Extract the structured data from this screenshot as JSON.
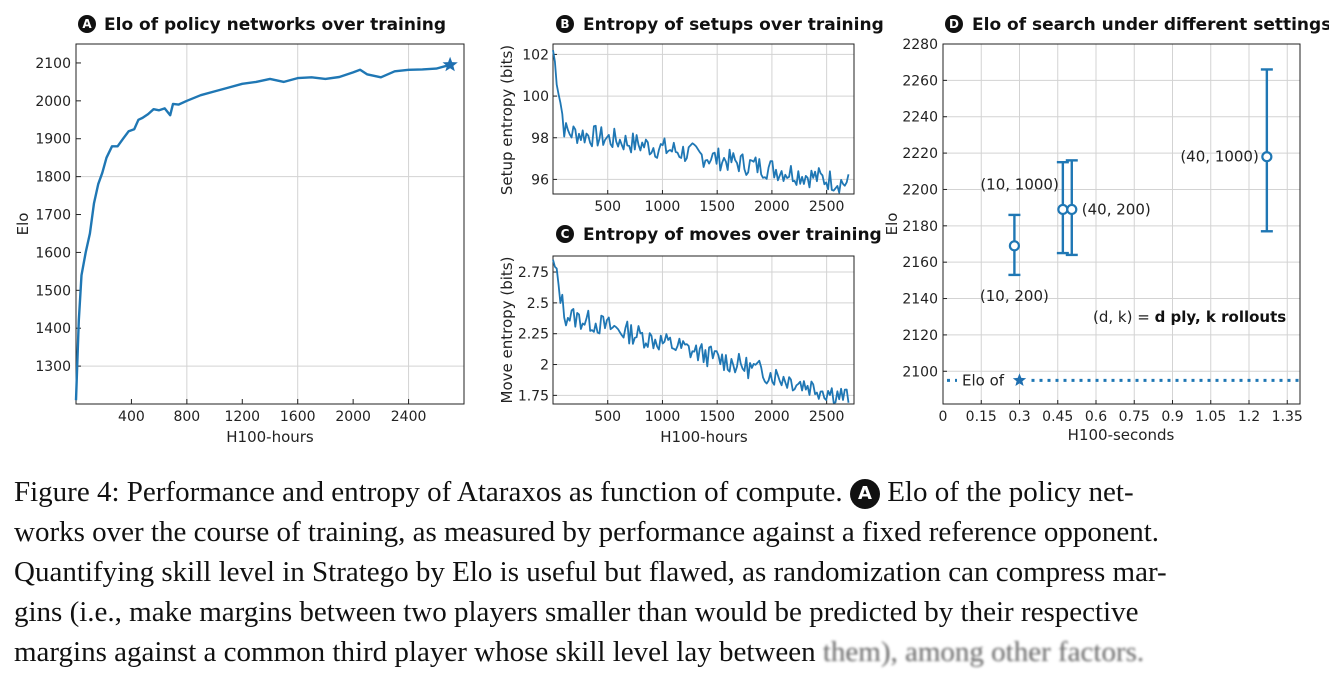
{
  "colors": {
    "line": "#1f77b4",
    "marker": "#1f6fb0",
    "text": "#111111"
  },
  "chart_data": [
    {
      "id": "A",
      "type": "line",
      "title": "Elo of policy networks over training",
      "xlabel": "H100-hours",
      "ylabel": "Elo",
      "xlim": [
        0,
        2800
      ],
      "ylim": [
        1200,
        2150
      ],
      "xticks": [
        400,
        800,
        1200,
        1600,
        2000,
        2400
      ],
      "yticks": [
        1300,
        1400,
        1500,
        1600,
        1700,
        1800,
        1900,
        2000,
        2100
      ],
      "gridlines_x": [
        800,
        1600,
        2400
      ],
      "gridlines_y": [
        1300,
        1800
      ],
      "x": [
        0,
        20,
        40,
        70,
        100,
        130,
        160,
        190,
        220,
        260,
        300,
        340,
        380,
        420,
        450,
        480,
        520,
        560,
        600,
        640,
        680,
        700,
        740,
        800,
        900,
        1000,
        1100,
        1200,
        1300,
        1400,
        1500,
        1600,
        1700,
        1800,
        1900,
        2000,
        2050,
        2100,
        2200,
        2300,
        2400,
        2500,
        2600,
        2700
      ],
      "y": [
        1210,
        1420,
        1540,
        1600,
        1650,
        1730,
        1780,
        1810,
        1850,
        1880,
        1880,
        1900,
        1920,
        1925,
        1950,
        1955,
        1965,
        1978,
        1975,
        1980,
        1962,
        1992,
        1990,
        2000,
        2015,
        2025,
        2035,
        2045,
        2050,
        2058,
        2050,
        2060,
        2062,
        2058,
        2063,
        2075,
        2082,
        2070,
        2062,
        2078,
        2082,
        2083,
        2085,
        2095
      ],
      "endpoint_marker": "star",
      "endpoint": {
        "x": 2700,
        "y": 2095
      }
    },
    {
      "id": "B",
      "type": "line",
      "title": "Entropy of setups over training",
      "xlabel": "",
      "ylabel": "Setup entropy (bits)",
      "xlim": [
        0,
        2750
      ],
      "ylim": [
        95.3,
        102.5
      ],
      "xticks": [
        500,
        1000,
        1500,
        2000,
        2500
      ],
      "yticks": [
        96,
        98,
        100,
        102
      ],
      "series_shape": {
        "x_start": 0,
        "x_end": 2700,
        "n": 160,
        "start": 102.2,
        "plateau": 98.3,
        "end": 95.8,
        "noise": 0.55,
        "seed": 7
      }
    },
    {
      "id": "C",
      "type": "line",
      "title": "Entropy of moves over training",
      "xlabel": "H100-hours",
      "ylabel": "Move entropy (bits)",
      "xlim": [
        0,
        2750
      ],
      "ylim": [
        1.68,
        2.88
      ],
      "xticks": [
        500,
        1000,
        1500,
        2000,
        2500
      ],
      "yticks": [
        1.75,
        2,
        2.25,
        2.5,
        2.75
      ],
      "ytick_labels": [
        "1.75",
        "2",
        "2.25",
        "2.5",
        "2.75"
      ],
      "series_shape": {
        "x_start": 0,
        "x_end": 2700,
        "n": 160,
        "start": 2.85,
        "plateau": 2.4,
        "end": 1.73,
        "noise": 0.09,
        "seed": 13
      }
    },
    {
      "id": "D",
      "type": "scatter",
      "title": "Elo of search under different settings",
      "xlabel": "H100-seconds",
      "ylabel": "Elo",
      "xlim": [
        0,
        1.4
      ],
      "ylim": [
        2082,
        2280
      ],
      "xticks": [
        0,
        0.15,
        0.3,
        0.45,
        0.6,
        0.75,
        0.9,
        1.05,
        1.2,
        1.35
      ],
      "xtick_labels": [
        "0",
        "0.15",
        "0.3",
        "0.45",
        "0.6",
        "0.75",
        "0.9",
        "1.05",
        "1.2",
        "1.35"
      ],
      "yticks": [
        2100,
        2120,
        2140,
        2160,
        2180,
        2200,
        2220,
        2240,
        2260,
        2280
      ],
      "points": [
        {
          "label": "(10, 200)",
          "x": 0.28,
          "y": 2169,
          "low": 2153,
          "high": 2186,
          "label_pos": "below"
        },
        {
          "label": "(10, 1000)",
          "x": 0.47,
          "y": 2189,
          "low": 2165,
          "high": 2215,
          "label_pos": "upper-left"
        },
        {
          "label": "(40, 200)",
          "x": 0.505,
          "y": 2189,
          "low": 2164,
          "high": 2216,
          "label_pos": "right"
        },
        {
          "label": "(40, 1000)",
          "x": 1.27,
          "y": 2218,
          "low": 2177,
          "high": 2266,
          "label_pos": "left"
        }
      ],
      "reference_line": {
        "y": 2095,
        "label": "Elo of",
        "marker": "star",
        "marker_x": 0.3
      },
      "legend_note": {
        "prefix": "(d, k) = ",
        "bold": "d ply, k rollouts"
      }
    }
  ],
  "caption": {
    "line1_pre": "Figure 4: Performance and entropy of Ataraxos as function of compute.",
    "badge": "A",
    "line1_post": "Elo of the policy net-",
    "line2": "works over the course of training, as measured by performance against a fixed reference opponent.",
    "line3": "Quantifying skill level in Stratego by Elo is useful but flawed, as randomization can compress mar-",
    "line4": "gins (i.e., make margins between two players smaller than would be predicted by their respective",
    "line5_pre": "margins against a common third player whose skill level lay between",
    "line5_blur": "them), among other factors."
  }
}
